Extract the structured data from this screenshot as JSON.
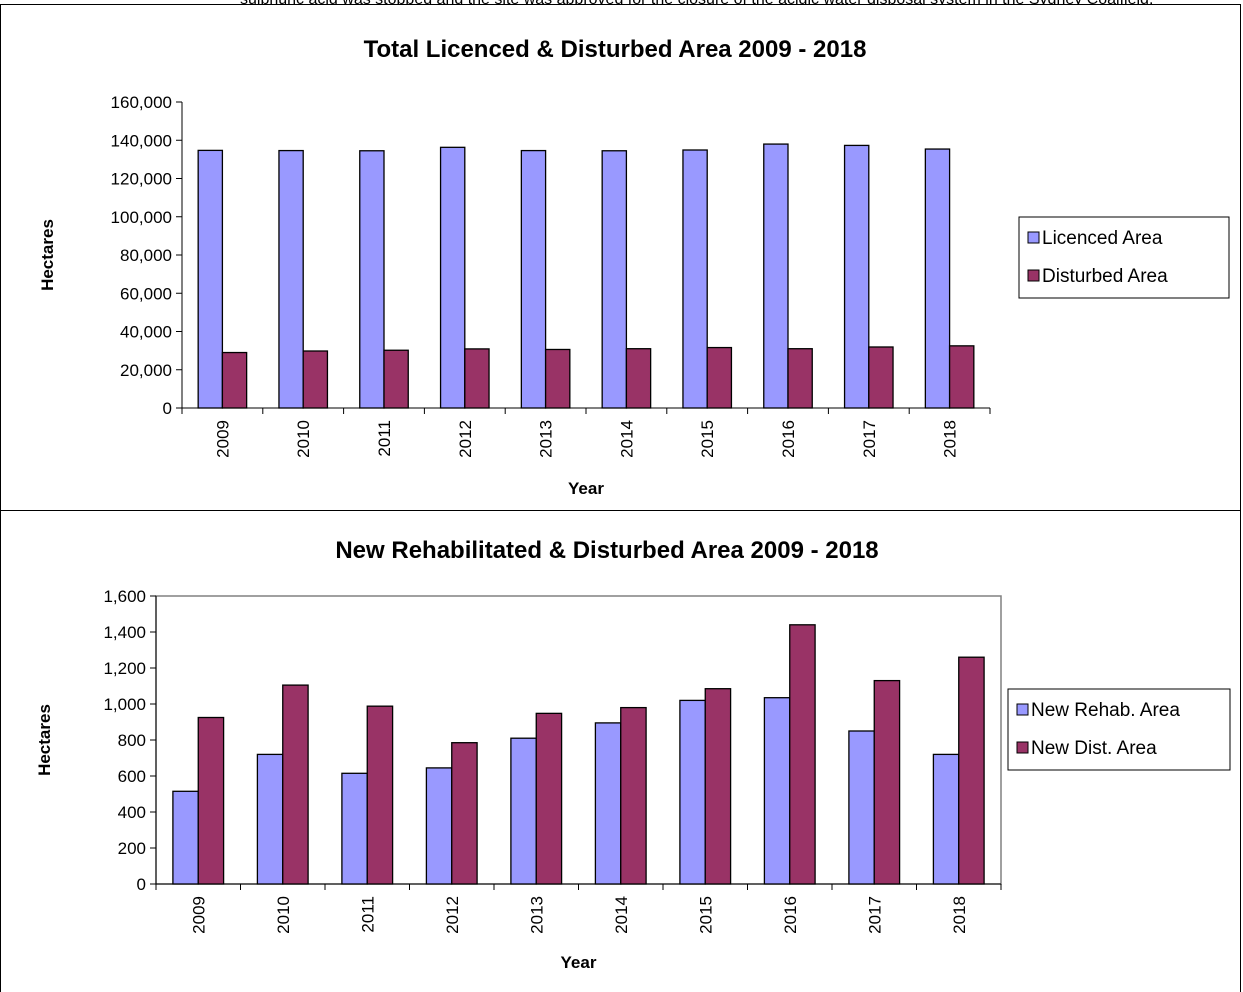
{
  "top_text": "sulphuric acid was stopped and the site was approved for the closure of the acidic water disposal system in the Sydney Coalfield.",
  "chart_data": [
    {
      "type": "bar",
      "title": "Total Licenced & Disturbed Area 2009 - 2018",
      "xlabel": "Year",
      "ylabel": "Hectares",
      "categories": [
        "2009",
        "2010",
        "2011",
        "2012",
        "2013",
        "2014",
        "2015",
        "2016",
        "2017",
        "2018"
      ],
      "series": [
        {
          "name": "Licenced Area",
          "color": "#9999ff",
          "values": [
            134700,
            134600,
            134500,
            136300,
            134600,
            134500,
            134900,
            138000,
            137300,
            135400
          ]
        },
        {
          "name": "Disturbed Area",
          "color": "#993366",
          "values": [
            29000,
            29800,
            30200,
            30900,
            30600,
            31000,
            31600,
            31000,
            31900,
            32500
          ]
        }
      ],
      "ylim": [
        0,
        160000
      ],
      "yticks": [
        0,
        20000,
        40000,
        60000,
        80000,
        100000,
        120000,
        140000,
        160000
      ],
      "ytick_labels": [
        "0",
        "20,000",
        "40,000",
        "60,000",
        "80,000",
        "100,000",
        "120,000",
        "140,000",
        "160,000"
      ],
      "plot_border": false,
      "legend": "right"
    },
    {
      "type": "bar",
      "title": "New Rehabilitated & Disturbed Area 2009 - 2018",
      "xlabel": "Year",
      "ylabel": "Hectares",
      "categories": [
        "2009",
        "2010",
        "2011",
        "2012",
        "2013",
        "2014",
        "2015",
        "2016",
        "2017",
        "2018"
      ],
      "series": [
        {
          "name": "New Rehab. Area",
          "color": "#9999ff",
          "values": [
            515,
            720,
            615,
            645,
            810,
            895,
            1020,
            1035,
            850,
            720
          ]
        },
        {
          "name": "New Dist. Area",
          "color": "#993366",
          "values": [
            925,
            1105,
            988,
            785,
            948,
            980,
            1085,
            1440,
            1130,
            1260
          ]
        }
      ],
      "ylim": [
        0,
        1600
      ],
      "yticks": [
        0,
        200,
        400,
        600,
        800,
        1000,
        1200,
        1400,
        1600
      ],
      "ytick_labels": [
        "0",
        "200",
        "400",
        "600",
        "800",
        "1,000",
        "1,200",
        "1,400",
        "1,600"
      ],
      "plot_border": true,
      "legend": "right"
    }
  ]
}
